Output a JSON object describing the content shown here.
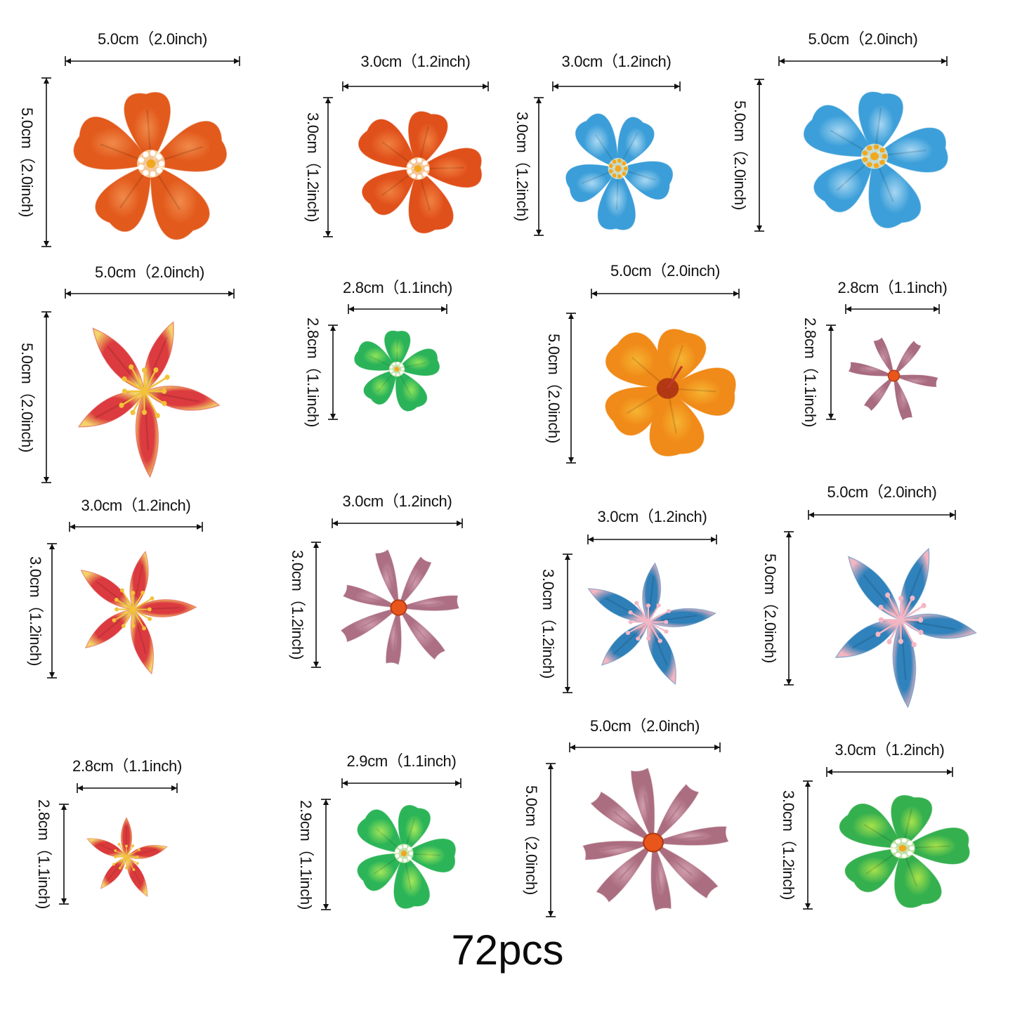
{
  "caption": "72pcs",
  "items": [
    {
      "width_label": "5.0cm（2.0inch)",
      "height_label": "5.0cm（2.0inch)",
      "color": "#e25a1c",
      "accent": "#f08a4a",
      "center": "#ffffff",
      "petals": 5,
      "style": "round",
      "icon": "orange-flower-icon"
    },
    {
      "width_label": "3.0cm（1.2inch)",
      "height_label": "3.0cm（1.2inch)",
      "color": "#e0501a",
      "accent": "#f08040",
      "center": "#ffffff",
      "petals": 5,
      "style": "round",
      "icon": "orange-flower-icon"
    },
    {
      "width_label": "3.0cm（1.2inch)",
      "height_label": "3.0cm（1.2inch)",
      "color": "#3b9ed8",
      "accent": "#a9d8f2",
      "center": "#f2a81e",
      "petals": 5,
      "style": "round",
      "icon": "blue-flower-icon"
    },
    {
      "width_label": "5.0cm（2.0inch)",
      "height_label": "5.0cm（2.0inch)",
      "color": "#3c9fd9",
      "accent": "#a6d6f2",
      "center": "#f2a81e",
      "petals": 5,
      "style": "round",
      "icon": "blue-flower-icon"
    },
    {
      "width_label": "5.0cm（2.0inch)",
      "height_label": "5.0cm（2.0inch)",
      "color": "#dc3b3f",
      "accent": "#f3d36b",
      "center": "#f2c23a",
      "petals": 5,
      "style": "lily",
      "icon": "red-lily-icon"
    },
    {
      "width_label": "2.8cm（1.1inch)",
      "height_label": "2.8cm（1.1inch)",
      "color": "#2bb35a",
      "accent": "#8ee35a",
      "center": "#ffffff",
      "petals": 5,
      "style": "round",
      "icon": "green-flower-icon"
    },
    {
      "width_label": "5.0cm（2.0inch)",
      "height_label": "5.0cm（2.0inch)",
      "color": "#f08a18",
      "accent": "#f6b432",
      "center": "#a82a12",
      "petals": 5,
      "style": "hibiscus",
      "icon": "orange-hibiscus-icon"
    },
    {
      "width_label": "2.8cm（1.1inch)",
      "height_label": "2.8cm（1.1inch)",
      "color": "#a86b80",
      "accent": "#c895a6",
      "center": "#e8561c",
      "petals": 6,
      "style": "daisy",
      "icon": "mauve-daisy-icon"
    },
    {
      "width_label": "3.0cm（1.2inch)",
      "height_label": "3.0cm（1.2inch)",
      "color": "#db3a40",
      "accent": "#f3d36b",
      "center": "#f2c23a",
      "petals": 5,
      "style": "lily",
      "icon": "red-lily-icon"
    },
    {
      "width_label": "3.0cm（1.2inch)",
      "height_label": "3.0cm（1.2inch)",
      "color": "#ac6f84",
      "accent": "#cd9aab",
      "center": "#e8561c",
      "petals": 7,
      "style": "daisy",
      "icon": "mauve-daisy-icon"
    },
    {
      "width_label": "3.0cm（1.2inch)",
      "height_label": "3.0cm（1.2inch)",
      "color": "#2f7fb8",
      "accent": "#f3b5c0",
      "center": "#f4b7c6",
      "petals": 5,
      "style": "lily",
      "icon": "blue-lily-icon"
    },
    {
      "width_label": "5.0cm（2.0inch)",
      "height_label": "5.0cm（2.0inch)",
      "color": "#2f82bc",
      "accent": "#f3b5c0",
      "center": "#f4b7c6",
      "petals": 5,
      "style": "lily",
      "icon": "blue-lily-icon"
    },
    {
      "width_label": "2.8cm（1.1inch)",
      "height_label": "2.8cm（1.1inch)",
      "color": "#da3a3c",
      "accent": "#f3d36b",
      "center": "#f2c23a",
      "petals": 5,
      "style": "lily",
      "icon": "red-lily-icon"
    },
    {
      "width_label": "2.9cm（1.1inch)",
      "height_label": "2.9cm（1.1inch)",
      "color": "#2cb558",
      "accent": "#a4e85a",
      "center": "#ffffff",
      "petals": 5,
      "style": "round",
      "icon": "green-flower-icon"
    },
    {
      "width_label": "5.0cm（2.0inch)",
      "height_label": "5.0cm（2.0inch)",
      "color": "#ab6d80",
      "accent": "#cf9fae",
      "center": "#e8561c",
      "petals": 8,
      "style": "daisy",
      "icon": "mauve-daisy-icon"
    },
    {
      "width_label": "3.0cm（1.2inch)",
      "height_label": "3.0cm（1.2inch)",
      "color": "#35b04f",
      "accent": "#a8e24a",
      "center": "#ffffff",
      "petals": 5,
      "style": "round",
      "icon": "green-flower-icon"
    }
  ]
}
